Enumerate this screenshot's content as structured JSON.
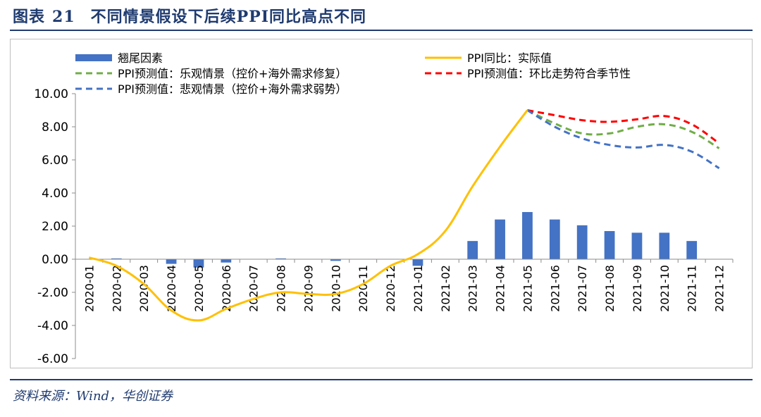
{
  "figure": {
    "label": "图表",
    "number": "21",
    "title": "不同情景假设下后续PPI同比高点不同",
    "source": "资料来源：Wind，华创证券"
  },
  "chart_data": {
    "type": "bar+line",
    "title": "",
    "xlabel": "",
    "ylabel": "",
    "ylim": [
      -6,
      10
    ],
    "yticks": [
      "10.00",
      "8.00",
      "6.00",
      "4.00",
      "2.00",
      "0.00",
      "-2.00",
      "-4.00",
      "-6.00"
    ],
    "grid": false,
    "legend_position": "top",
    "categories": [
      "2020-01",
      "2020-02",
      "2020-03",
      "2020-04",
      "2020-05",
      "2020-06",
      "2020-07",
      "2020-08",
      "2020-09",
      "2020-10",
      "2020-11",
      "2020-12",
      "2021-01",
      "2021-02",
      "2021-03",
      "2021-04",
      "2021-05",
      "2021-06",
      "2021-07",
      "2021-08",
      "2021-09",
      "2021-10",
      "2021-11",
      "2021-12"
    ],
    "bars": {
      "name": "翘尾因素",
      "color": "#4472c4",
      "values": [
        0.0,
        0.05,
        0.0,
        -0.28,
        -0.5,
        -0.2,
        0.0,
        0.05,
        0.0,
        -0.1,
        0.0,
        0.0,
        -0.4,
        0.0,
        1.1,
        2.4,
        2.85,
        2.4,
        2.05,
        1.7,
        1.6,
        1.6,
        1.1,
        0.0
      ]
    },
    "series": [
      {
        "name": "PPI同比：实际值",
        "color": "#ffc000",
        "dash": "solid",
        "values": [
          0.1,
          -0.4,
          -1.5,
          -3.1,
          -3.7,
          -3.0,
          -2.4,
          -2.0,
          -2.1,
          -2.1,
          -1.5,
          -0.4,
          0.3,
          1.7,
          4.4,
          6.8,
          9.0,
          null,
          null,
          null,
          null,
          null,
          null,
          null
        ]
      },
      {
        "name": "PPI预测值：乐观情景（控价+海外需求修复）",
        "color": "#70ad47",
        "dash": "dashed",
        "values": [
          null,
          null,
          null,
          null,
          null,
          null,
          null,
          null,
          null,
          null,
          null,
          null,
          null,
          null,
          null,
          null,
          9.0,
          8.2,
          7.6,
          7.6,
          8.0,
          8.15,
          7.7,
          6.7
        ]
      },
      {
        "name": "PPI预测值：环比走势符合季节性",
        "color": "#ff0000",
        "dash": "dashed",
        "values": [
          null,
          null,
          null,
          null,
          null,
          null,
          null,
          null,
          null,
          null,
          null,
          null,
          null,
          null,
          null,
          null,
          9.0,
          8.7,
          8.4,
          8.3,
          8.45,
          8.65,
          8.15,
          7.0
        ]
      },
      {
        "name": "PPI预测值：悲观情景（控价+海外需求弱势）",
        "color": "#4472c4",
        "dash": "dashed",
        "values": [
          null,
          null,
          null,
          null,
          null,
          null,
          null,
          null,
          null,
          null,
          null,
          null,
          null,
          null,
          null,
          null,
          9.0,
          8.0,
          7.3,
          6.9,
          6.75,
          6.9,
          6.5,
          5.5
        ]
      }
    ]
  }
}
